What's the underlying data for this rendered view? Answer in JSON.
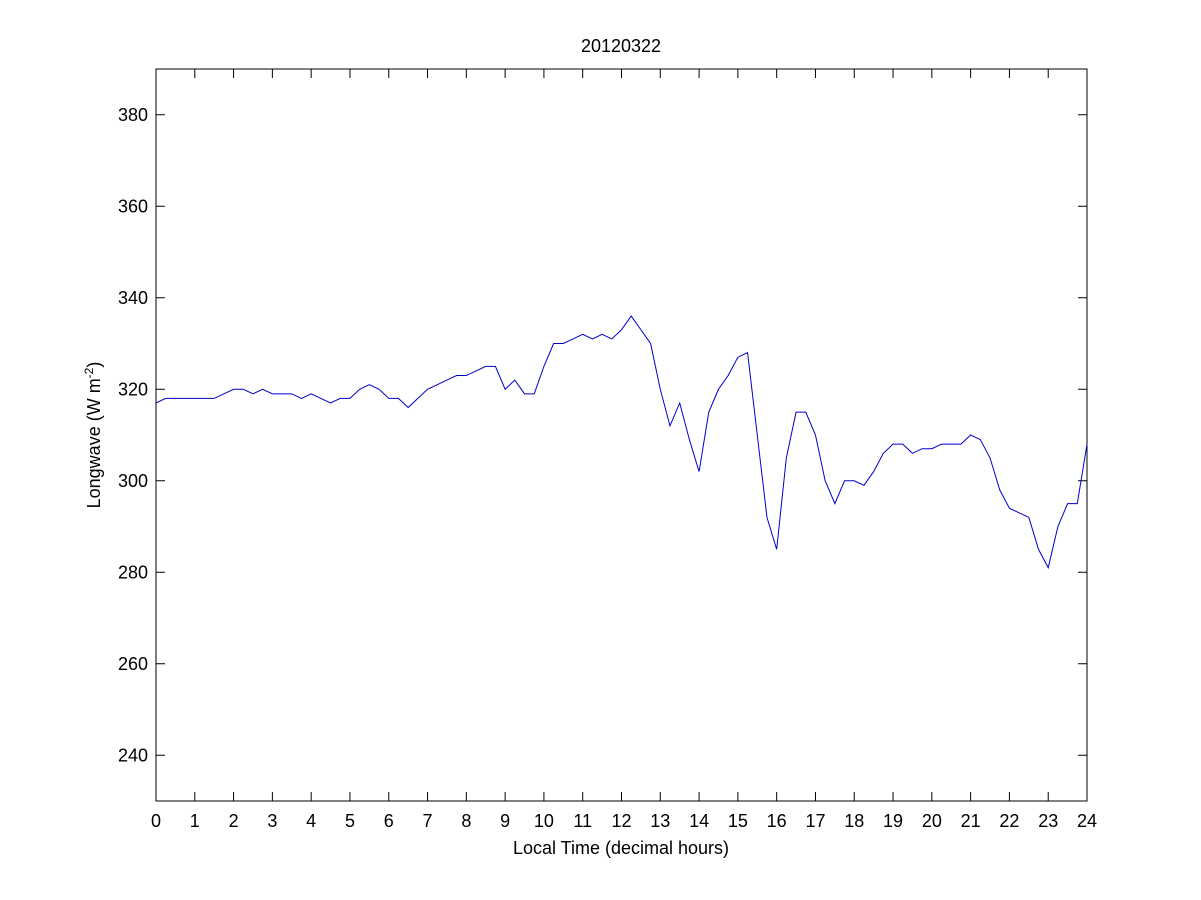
{
  "chart_data": {
    "type": "line",
    "title": "20120322",
    "xlabel": "Local Time (decimal hours)",
    "ylabel": [
      "Longwave (W m",
      "-2",
      ")"
    ],
    "x": [
      0,
      0.25,
      0.5,
      0.75,
      1,
      1.25,
      1.5,
      1.75,
      2,
      2.25,
      2.5,
      2.75,
      3,
      3.25,
      3.5,
      3.75,
      4,
      4.25,
      4.5,
      4.75,
      5,
      5.25,
      5.5,
      5.75,
      6,
      6.25,
      6.5,
      6.75,
      7,
      7.25,
      7.5,
      7.75,
      8,
      8.25,
      8.5,
      8.75,
      9,
      9.25,
      9.5,
      9.75,
      10,
      10.25,
      10.5,
      10.75,
      11,
      11.25,
      11.5,
      11.75,
      12,
      12.25,
      12.5,
      12.75,
      13,
      13.25,
      13.5,
      13.75,
      14,
      14.25,
      14.5,
      14.75,
      15,
      15.25,
      15.5,
      15.75,
      16,
      16.25,
      16.5,
      16.75,
      17,
      17.25,
      17.5,
      17.75,
      18,
      18.25,
      18.5,
      18.75,
      19,
      19.25,
      19.5,
      19.75,
      20,
      20.25,
      20.5,
      20.75,
      21,
      21.25,
      21.5,
      21.75,
      22,
      22.25,
      22.5,
      22.75,
      23,
      23.25,
      23.5,
      23.75,
      24
    ],
    "series": [
      {
        "color": "#0000cc",
        "values": [
          317,
          318,
          318,
          318,
          318,
          318,
          318,
          319,
          320,
          320,
          319,
          320,
          319,
          319,
          319,
          318,
          319,
          318,
          317,
          318,
          318,
          320,
          321,
          320,
          318,
          318,
          316,
          318,
          320,
          321,
          322,
          323,
          323,
          324,
          325,
          325,
          320,
          322,
          319,
          319,
          325,
          330,
          330,
          331,
          332,
          331,
          332,
          331,
          333,
          336,
          333,
          330,
          320,
          312,
          317,
          309,
          302,
          315,
          320,
          323,
          327,
          328,
          310,
          292,
          285,
          305,
          315,
          315,
          310,
          300,
          295,
          300,
          300,
          299,
          302,
          306,
          308,
          308,
          306,
          307,
          307,
          308,
          308,
          308,
          310,
          309,
          305,
          298,
          294,
          293,
          292,
          285,
          281,
          290,
          295,
          295,
          308
        ]
      }
    ],
    "xlim": [
      0,
      24
    ],
    "ylim": [
      230,
      390
    ],
    "xticks": [
      0,
      1,
      2,
      3,
      4,
      5,
      6,
      7,
      8,
      9,
      10,
      11,
      12,
      13,
      14,
      15,
      16,
      17,
      18,
      19,
      20,
      21,
      22,
      23,
      24
    ],
    "yticks": [
      240,
      260,
      280,
      300,
      320,
      340,
      360,
      380
    ]
  }
}
